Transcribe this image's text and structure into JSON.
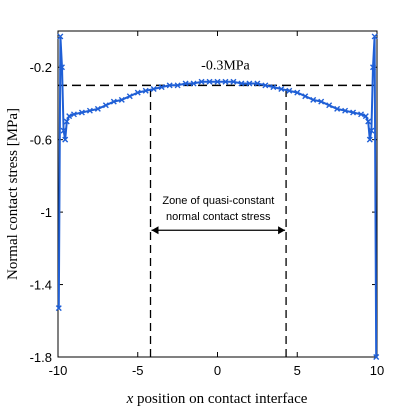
{
  "chart_data": {
    "type": "line",
    "xlabel_italic": "x",
    "xlabel_rest": " position on contact interface",
    "ylabel": "Normal contact stress [MPa]",
    "xlim": [
      -10,
      10
    ],
    "ylim": [
      -1.8,
      0.0
    ],
    "xticks": [
      -10,
      -5,
      0,
      5,
      10
    ],
    "xtick_labels": [
      "-10",
      "-5",
      "0",
      "5",
      "10"
    ],
    "yticks": [
      -0.2,
      -0.6,
      -1.0,
      -1.4,
      -1.8
    ],
    "ytick_labels": [
      "-0.2",
      "-0.6",
      "-1",
      "-1.4",
      "-1.8"
    ],
    "grid": false,
    "series": [
      {
        "color": "#1f5fd6",
        "marker": "x",
        "x": [
          -9.95,
          -9.85,
          -9.75,
          -9.65,
          -9.55,
          -9.45,
          -9.3,
          -9,
          -8.5,
          -8,
          -7.5,
          -7,
          -6.5,
          -6,
          -5.5,
          -5,
          -4.5,
          -4,
          -3.5,
          -3,
          -2.5,
          -2,
          -1.5,
          -1,
          -0.5,
          0,
          0.5,
          1,
          1.5,
          2,
          2.5,
          3,
          3.5,
          4,
          4.5,
          5,
          5.5,
          6,
          6.5,
          7,
          7.5,
          8,
          8.5,
          9,
          9.3,
          9.45,
          9.55,
          9.65,
          9.75,
          9.85,
          9.95
        ],
        "y": [
          -1.53,
          -0.03,
          -0.2,
          -0.55,
          -0.6,
          -0.5,
          -0.47,
          -0.46,
          -0.45,
          -0.44,
          -0.43,
          -0.41,
          -0.39,
          -0.38,
          -0.36,
          -0.34,
          -0.33,
          -0.32,
          -0.31,
          -0.3,
          -0.3,
          -0.29,
          -0.29,
          -0.28,
          -0.28,
          -0.28,
          -0.28,
          -0.28,
          -0.29,
          -0.29,
          -0.29,
          -0.3,
          -0.31,
          -0.32,
          -0.33,
          -0.34,
          -0.36,
          -0.38,
          -0.39,
          -0.41,
          -0.43,
          -0.44,
          -0.45,
          -0.46,
          -0.47,
          -0.5,
          -0.6,
          -0.55,
          -0.2,
          -0.03,
          -1.8
        ]
      }
    ],
    "reference_line": {
      "y": -0.3,
      "label": "-0.3MPa"
    },
    "zone": {
      "x_start": -4.2,
      "x_end": 4.3,
      "label_line1": "Zone of quasi-constant",
      "label_line2": "normal contact stress",
      "arrow_y": -1.1
    }
  }
}
